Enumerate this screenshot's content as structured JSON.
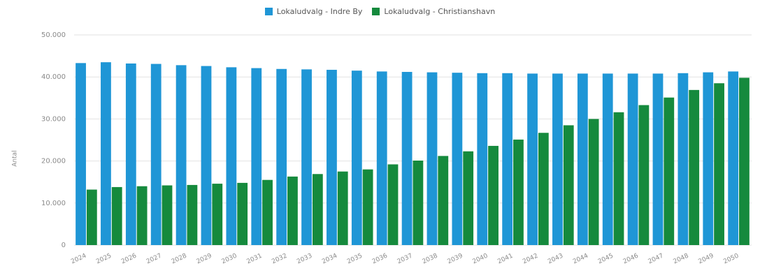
{
  "chart_data": {
    "type": "bar",
    "categories": [
      "2024",
      "2025",
      "2026",
      "2027",
      "2028",
      "2029",
      "2030",
      "2031",
      "2032",
      "2033",
      "2034",
      "2035",
      "2036",
      "2037",
      "2038",
      "2039",
      "2040",
      "2041",
      "2042",
      "2043",
      "2044",
      "2045",
      "2046",
      "2047",
      "2048",
      "2049",
      "2050"
    ],
    "series": [
      {
        "name": "Lokaludvalg - Indre By",
        "color": "#1f96d6",
        "values": [
          43300,
          43500,
          43200,
          43100,
          42800,
          42600,
          42300,
          42100,
          41900,
          41800,
          41700,
          41500,
          41300,
          41200,
          41100,
          41000,
          40900,
          40900,
          40800,
          40800,
          40800,
          40800,
          40800,
          40800,
          40900,
          41100,
          41300
        ]
      },
      {
        "name": "Lokaludvalg - Christianshavn",
        "color": "#158a3d",
        "values": [
          13200,
          13800,
          14000,
          14200,
          14300,
          14600,
          14800,
          15500,
          16300,
          16900,
          17500,
          18000,
          19200,
          20100,
          21200,
          22300,
          23600,
          25100,
          26700,
          28500,
          30000,
          31600,
          33300,
          35100,
          36900,
          38500,
          39800
        ]
      }
    ],
    "ylabel": "Antal",
    "ylim": [
      0,
      50000
    ],
    "yticks": [
      "0",
      "10.000",
      "20.000",
      "30.000",
      "40.000",
      "50.000"
    ],
    "grid": true,
    "legend_position": "top-center"
  }
}
